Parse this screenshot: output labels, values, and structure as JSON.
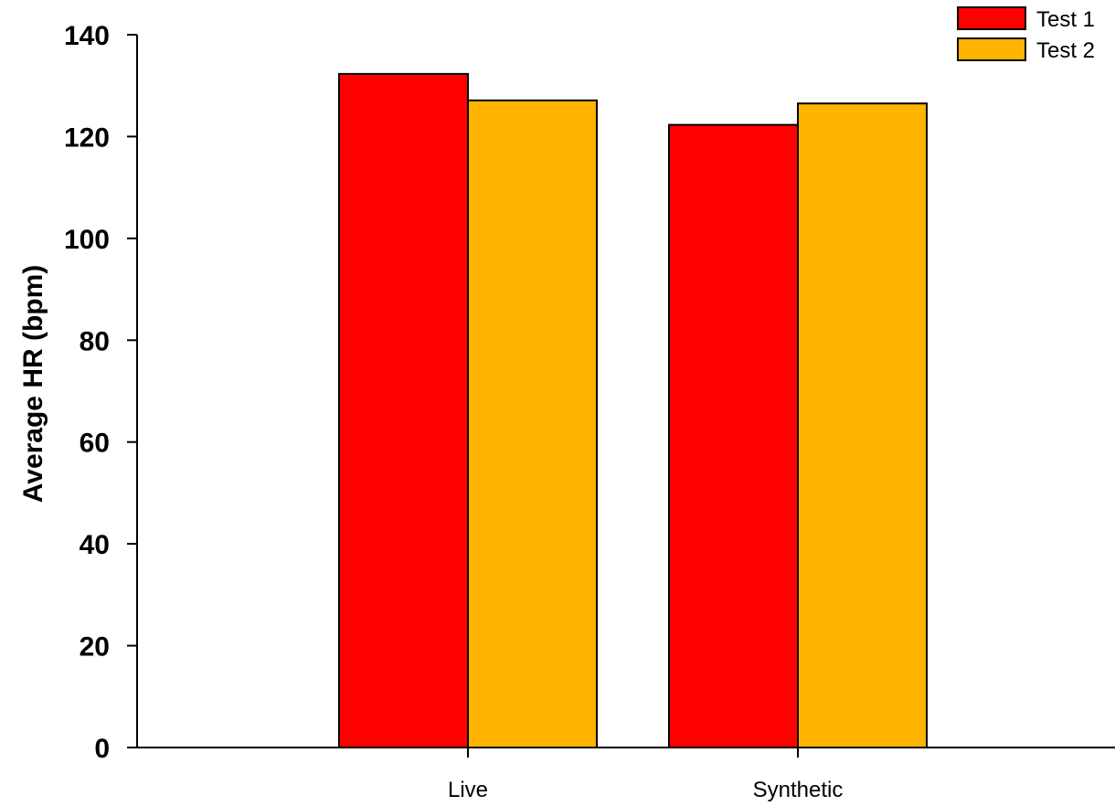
{
  "chart_data": {
    "type": "bar",
    "title": "",
    "xlabel": "",
    "ylabel": "Average HR (bpm)",
    "categories": [
      "Live",
      "Synthetic"
    ],
    "series": [
      {
        "name": "Test 1",
        "values": [
          132.3,
          122.3
        ],
        "color": "#ff0000"
      },
      {
        "name": "Test 2",
        "values": [
          127.1,
          126.5
        ],
        "color": "#ffb400"
      }
    ],
    "ylim": [
      0,
      140
    ],
    "yticks": [
      0,
      20,
      40,
      60,
      80,
      100,
      120,
      140
    ],
    "grid": false,
    "legend": "top-right"
  }
}
